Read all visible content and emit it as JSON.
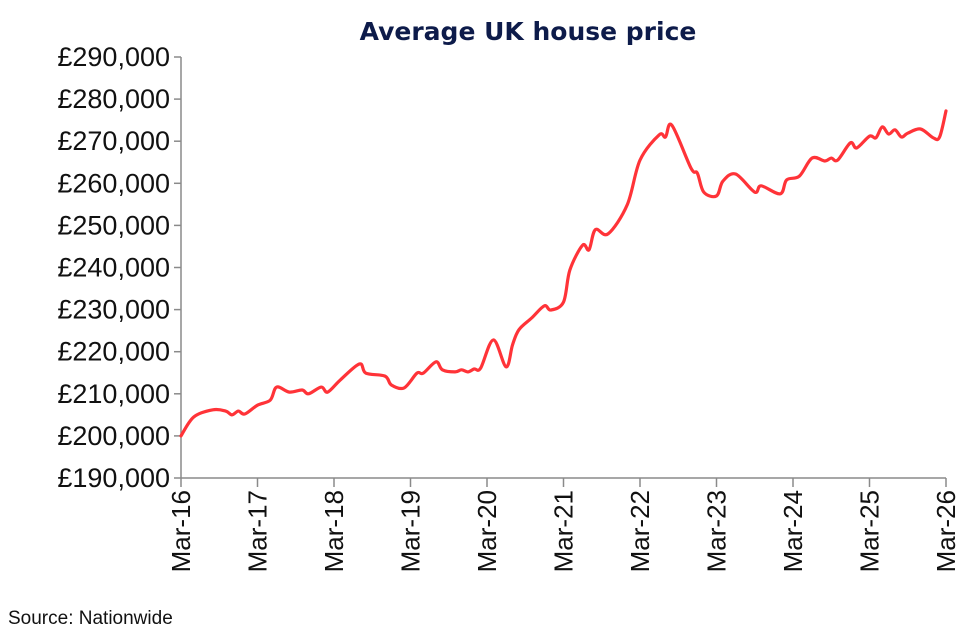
{
  "chart_data": {
    "type": "line",
    "title": "Average UK house price",
    "xlabel": "",
    "ylabel": "",
    "source": "Source: Nationwide",
    "ylim": [
      190000,
      290000
    ],
    "yticks": [
      190000,
      200000,
      210000,
      220000,
      230000,
      240000,
      250000,
      260000,
      270000,
      280000,
      290000
    ],
    "ytick_labels": [
      "£190,000",
      "£200,000",
      "£210,000",
      "£220,000",
      "£230,000",
      "£240,000",
      "£250,000",
      "£260,000",
      "£270,000",
      "£280,000",
      "£290,000"
    ],
    "xlim": [
      "2016-03",
      "2026-03"
    ],
    "xticks": [
      "2016-03",
      "2017-03",
      "2018-03",
      "2019-03",
      "2020-03",
      "2021-03",
      "2022-03",
      "2023-03",
      "2024-03",
      "2025-03",
      "2026-03"
    ],
    "xtick_labels": [
      "Mar-16",
      "Mar-17",
      "Mar-18",
      "Mar-19",
      "Mar-20",
      "Mar-21",
      "Mar-22",
      "Mar-23",
      "Mar-24",
      "Mar-25",
      "Mar-26"
    ],
    "grid": false,
    "legend": "none",
    "line_color": "#ff3338",
    "title_color": "#0d1b4a",
    "series": [
      {
        "x": [
          "2016-03",
          "2016-05",
          "2016-08",
          "2016-10",
          "2016-11",
          "2016-12",
          "2017-01",
          "2017-03",
          "2017-05",
          "2017-06",
          "2017-08",
          "2017-10",
          "2017-11",
          "2018-01",
          "2018-02",
          "2018-04",
          "2018-07",
          "2018-08",
          "2018-11",
          "2018-12",
          "2019-02",
          "2019-04",
          "2019-05",
          "2019-07",
          "2019-08",
          "2019-10",
          "2019-11",
          "2019-12",
          "2020-01",
          "2020-02",
          "2020-04",
          "2020-06",
          "2020-07",
          "2020-08",
          "2020-10",
          "2020-12",
          "2021-01",
          "2021-03",
          "2021-04",
          "2021-06",
          "2021-07",
          "2021-08",
          "2021-10",
          "2022-01",
          "2022-03",
          "2022-06",
          "2022-07",
          "2022-08",
          "2022-11",
          "2022-12",
          "2023-01",
          "2023-03",
          "2023-04",
          "2023-06",
          "2023-09",
          "2023-10",
          "2024-01",
          "2024-02",
          "2024-04",
          "2024-06",
          "2024-08",
          "2024-09",
          "2024-10",
          "2024-12",
          "2025-01",
          "2025-03",
          "2025-04",
          "2025-05",
          "2025-06",
          "2025-07",
          "2025-08",
          "2025-09",
          "2025-11",
          "2026-01",
          "2026-02",
          "2026-03"
        ],
        "values": [
          200000,
          204500,
          206200,
          205900,
          205000,
          205900,
          205200,
          207300,
          208500,
          211600,
          210400,
          210900,
          210000,
          211600,
          210400,
          213300,
          217100,
          214900,
          214200,
          212100,
          211400,
          214900,
          214900,
          217600,
          215700,
          215200,
          215700,
          215200,
          215900,
          216100,
          222800,
          216400,
          221600,
          225200,
          228000,
          230900,
          229900,
          231800,
          239400,
          245300,
          244200,
          249000,
          248000,
          254900,
          265500,
          271500,
          271000,
          273800,
          263600,
          262400,
          257900,
          257000,
          260500,
          262200,
          257900,
          259400,
          257500,
          260800,
          261700,
          266000,
          265300,
          266000,
          265500,
          269600,
          268400,
          271200,
          270800,
          273400,
          271700,
          272700,
          271000,
          271900,
          272900,
          270800,
          271000,
          277200
        ]
      }
    ]
  }
}
